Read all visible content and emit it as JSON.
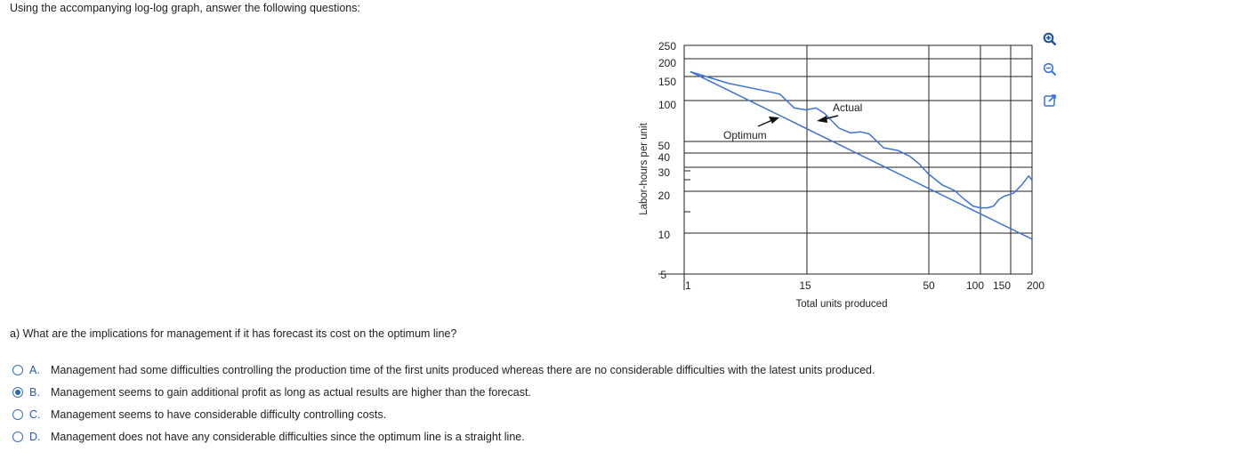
{
  "intro": "Using the accompanying log-log graph, answer the following questions:",
  "chart_data": {
    "type": "line",
    "xlabel": "Total units produced",
    "ylabel": "Labor-hours per unit",
    "x_scale": "log",
    "y_scale": "log",
    "x_ticks": [
      "1",
      "15",
      "50",
      "100",
      "150",
      "200"
    ],
    "y_ticks": [
      "250",
      "200",
      "150",
      "100",
      "50",
      "40",
      "30",
      "20",
      "10",
      "5"
    ],
    "annotations": [
      "Optimum",
      "Actual"
    ],
    "series": [
      {
        "name": "Optimum",
        "x": [
          1,
          200
        ],
        "y": [
          165,
          9
        ]
      },
      {
        "name": "Actual",
        "x": [
          1,
          1.8,
          3,
          4,
          5,
          6,
          7,
          8,
          9,
          10,
          12,
          14,
          16,
          20,
          25,
          30,
          35,
          40,
          50,
          60,
          70,
          80,
          90,
          100,
          110,
          120,
          130,
          140,
          150,
          170,
          190,
          200
        ],
        "y": [
          165,
          135,
          120,
          112,
          88,
          85,
          88,
          80,
          70,
          62,
          57,
          58,
          56,
          44,
          42,
          38,
          33,
          28,
          23,
          21,
          18,
          16,
          15.5,
          15.5,
          16,
          18,
          19,
          19.5,
          20,
          23,
          27,
          25
        ]
      }
    ]
  },
  "question": "a) What are the implications for management if it has forecast its cost on the optimum line?",
  "options": [
    {
      "letter": "A.",
      "text": "Management had some difficulties controlling the production time of the first units produced whereas there are no considerable difficulties with the latest units produced.",
      "selected": false
    },
    {
      "letter": "B.",
      "text": "Management seems to gain additional profit as long as actual results are higher than the forecast.",
      "selected": true
    },
    {
      "letter": "C.",
      "text": "Management seems to have considerable difficulty controlling costs.",
      "selected": false
    },
    {
      "letter": "D.",
      "text": "Management does not have any considerable difficulties since the optimum line is a straight line.",
      "selected": false
    }
  ],
  "icons": {
    "zoom_in": "zoom-in-icon",
    "zoom_out": "zoom-out-icon",
    "popout": "popout-icon"
  },
  "colors": {
    "series_line": "#3b73d6",
    "radio_accent": "#2b64b8"
  }
}
